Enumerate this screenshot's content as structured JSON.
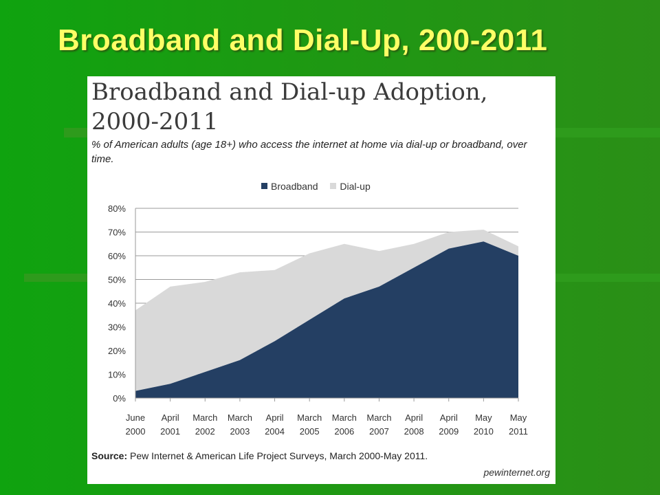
{
  "slide": {
    "title": "Broadband and Dial-Up, 200-2011"
  },
  "chart_data": {
    "type": "area",
    "title": "Broadband and Dial-up Adoption, 2000-2011",
    "subtitle": "% of American adults (age 18+) who access the internet at home via dial-up or broadband, over time.",
    "categories": [
      [
        "June",
        "2000"
      ],
      [
        "April",
        "2001"
      ],
      [
        "March",
        "2002"
      ],
      [
        "March",
        "2003"
      ],
      [
        "April",
        "2004"
      ],
      [
        "March",
        "2005"
      ],
      [
        "March",
        "2006"
      ],
      [
        "March",
        "2007"
      ],
      [
        "April",
        "2008"
      ],
      [
        "April",
        "2009"
      ],
      [
        "May",
        "2010"
      ],
      [
        "May",
        "2011"
      ]
    ],
    "series": [
      {
        "name": "Broadband",
        "color": "#243f63",
        "values": [
          3,
          6,
          11,
          16,
          24,
          33,
          42,
          47,
          55,
          63,
          66,
          60
        ]
      },
      {
        "name": "Dial-up",
        "color": "#d9d9d9",
        "values": [
          34,
          41,
          38,
          37,
          30,
          28,
          23,
          15,
          10,
          7,
          5,
          4
        ]
      }
    ],
    "stacked": true,
    "ylim": [
      0,
      80
    ],
    "yticks": [
      "0%",
      "10%",
      "20%",
      "30%",
      "40%",
      "50%",
      "60%",
      "70%",
      "80%"
    ],
    "grid": true,
    "legend_position": "top"
  },
  "source": {
    "label": "Source:",
    "text": " Pew Internet & American Life Project Surveys, March 2000-May 2011."
  },
  "credit": "pewinternet.org"
}
